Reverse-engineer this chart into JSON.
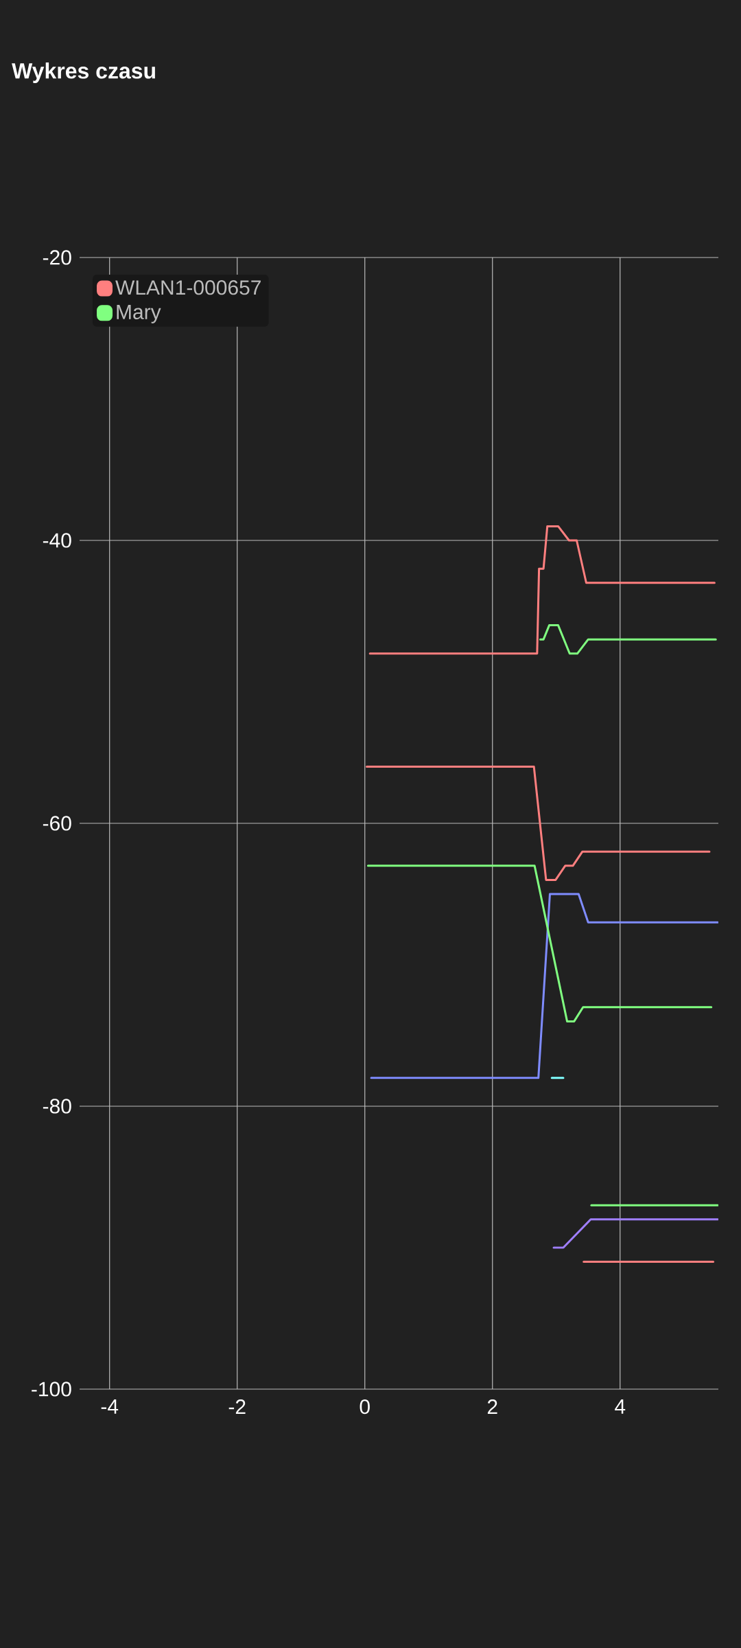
{
  "chart_data": {
    "type": "line",
    "title": "Wykres czasu",
    "xlim": [
      -4.47,
      5.54
    ],
    "ylim": [
      -100,
      -20
    ],
    "xticks": [
      -4,
      -2,
      0,
      2,
      4
    ],
    "yticks": [
      -20,
      -40,
      -60,
      -80,
      -100
    ],
    "grid": true,
    "legend": "top left",
    "line_style": "solid",
    "series": [
      {
        "color": "#ff7f7f",
        "x": [
          0.08,
          2.7,
          2.73,
          2.8,
          2.86,
          3.03,
          3.2,
          3.32,
          3.47,
          5.48
        ],
        "values": [
          -48,
          -48,
          -42,
          -42,
          -39,
          -39,
          -40,
          -40,
          -43,
          -43
        ]
      },
      {
        "color": "#80ff80",
        "x": [
          2.75,
          2.8,
          2.89,
          3.03,
          3.21,
          3.33,
          3.5,
          5.5
        ],
        "values": [
          -47,
          -47,
          -46,
          -46,
          -48,
          -48,
          -47,
          -47
        ]
      },
      {
        "color": "#ff7f7f",
        "x": [
          0.03,
          2.65,
          2.84,
          2.99,
          3.14,
          3.26,
          3.41,
          5.4
        ],
        "values": [
          -56,
          -56,
          -64,
          -64,
          -63,
          -63,
          -62,
          -62
        ]
      },
      {
        "color": "#7f8cff",
        "x": [
          0.1,
          2.72,
          2.9,
          3.35,
          3.5,
          5.53
        ],
        "values": [
          -78,
          -78,
          -65,
          -65,
          -67,
          -67
        ]
      },
      {
        "color": "#80ff80",
        "x": [
          0.05,
          2.66,
          3.17,
          3.28,
          3.42,
          5.43
        ],
        "values": [
          -63,
          -63,
          -74,
          -74,
          -73,
          -73
        ]
      },
      {
        "color": "#80ffff",
        "x": [
          2.93,
          3.11
        ],
        "values": [
          -78,
          -78
        ]
      },
      {
        "color": "#a07fff",
        "x": [
          2.96,
          3.11,
          3.54,
          5.53
        ],
        "values": [
          -90,
          -90,
          -88,
          -88
        ]
      },
      {
        "name": "WLAN1-000657",
        "color": "#ff7f7f",
        "x": [
          3.43,
          5.46
        ],
        "values": [
          -91,
          -91
        ]
      },
      {
        "name": "Mary",
        "color": "#80ff80",
        "x": [
          3.55,
          5.53
        ],
        "values": [
          -87,
          -87
        ]
      }
    ]
  }
}
